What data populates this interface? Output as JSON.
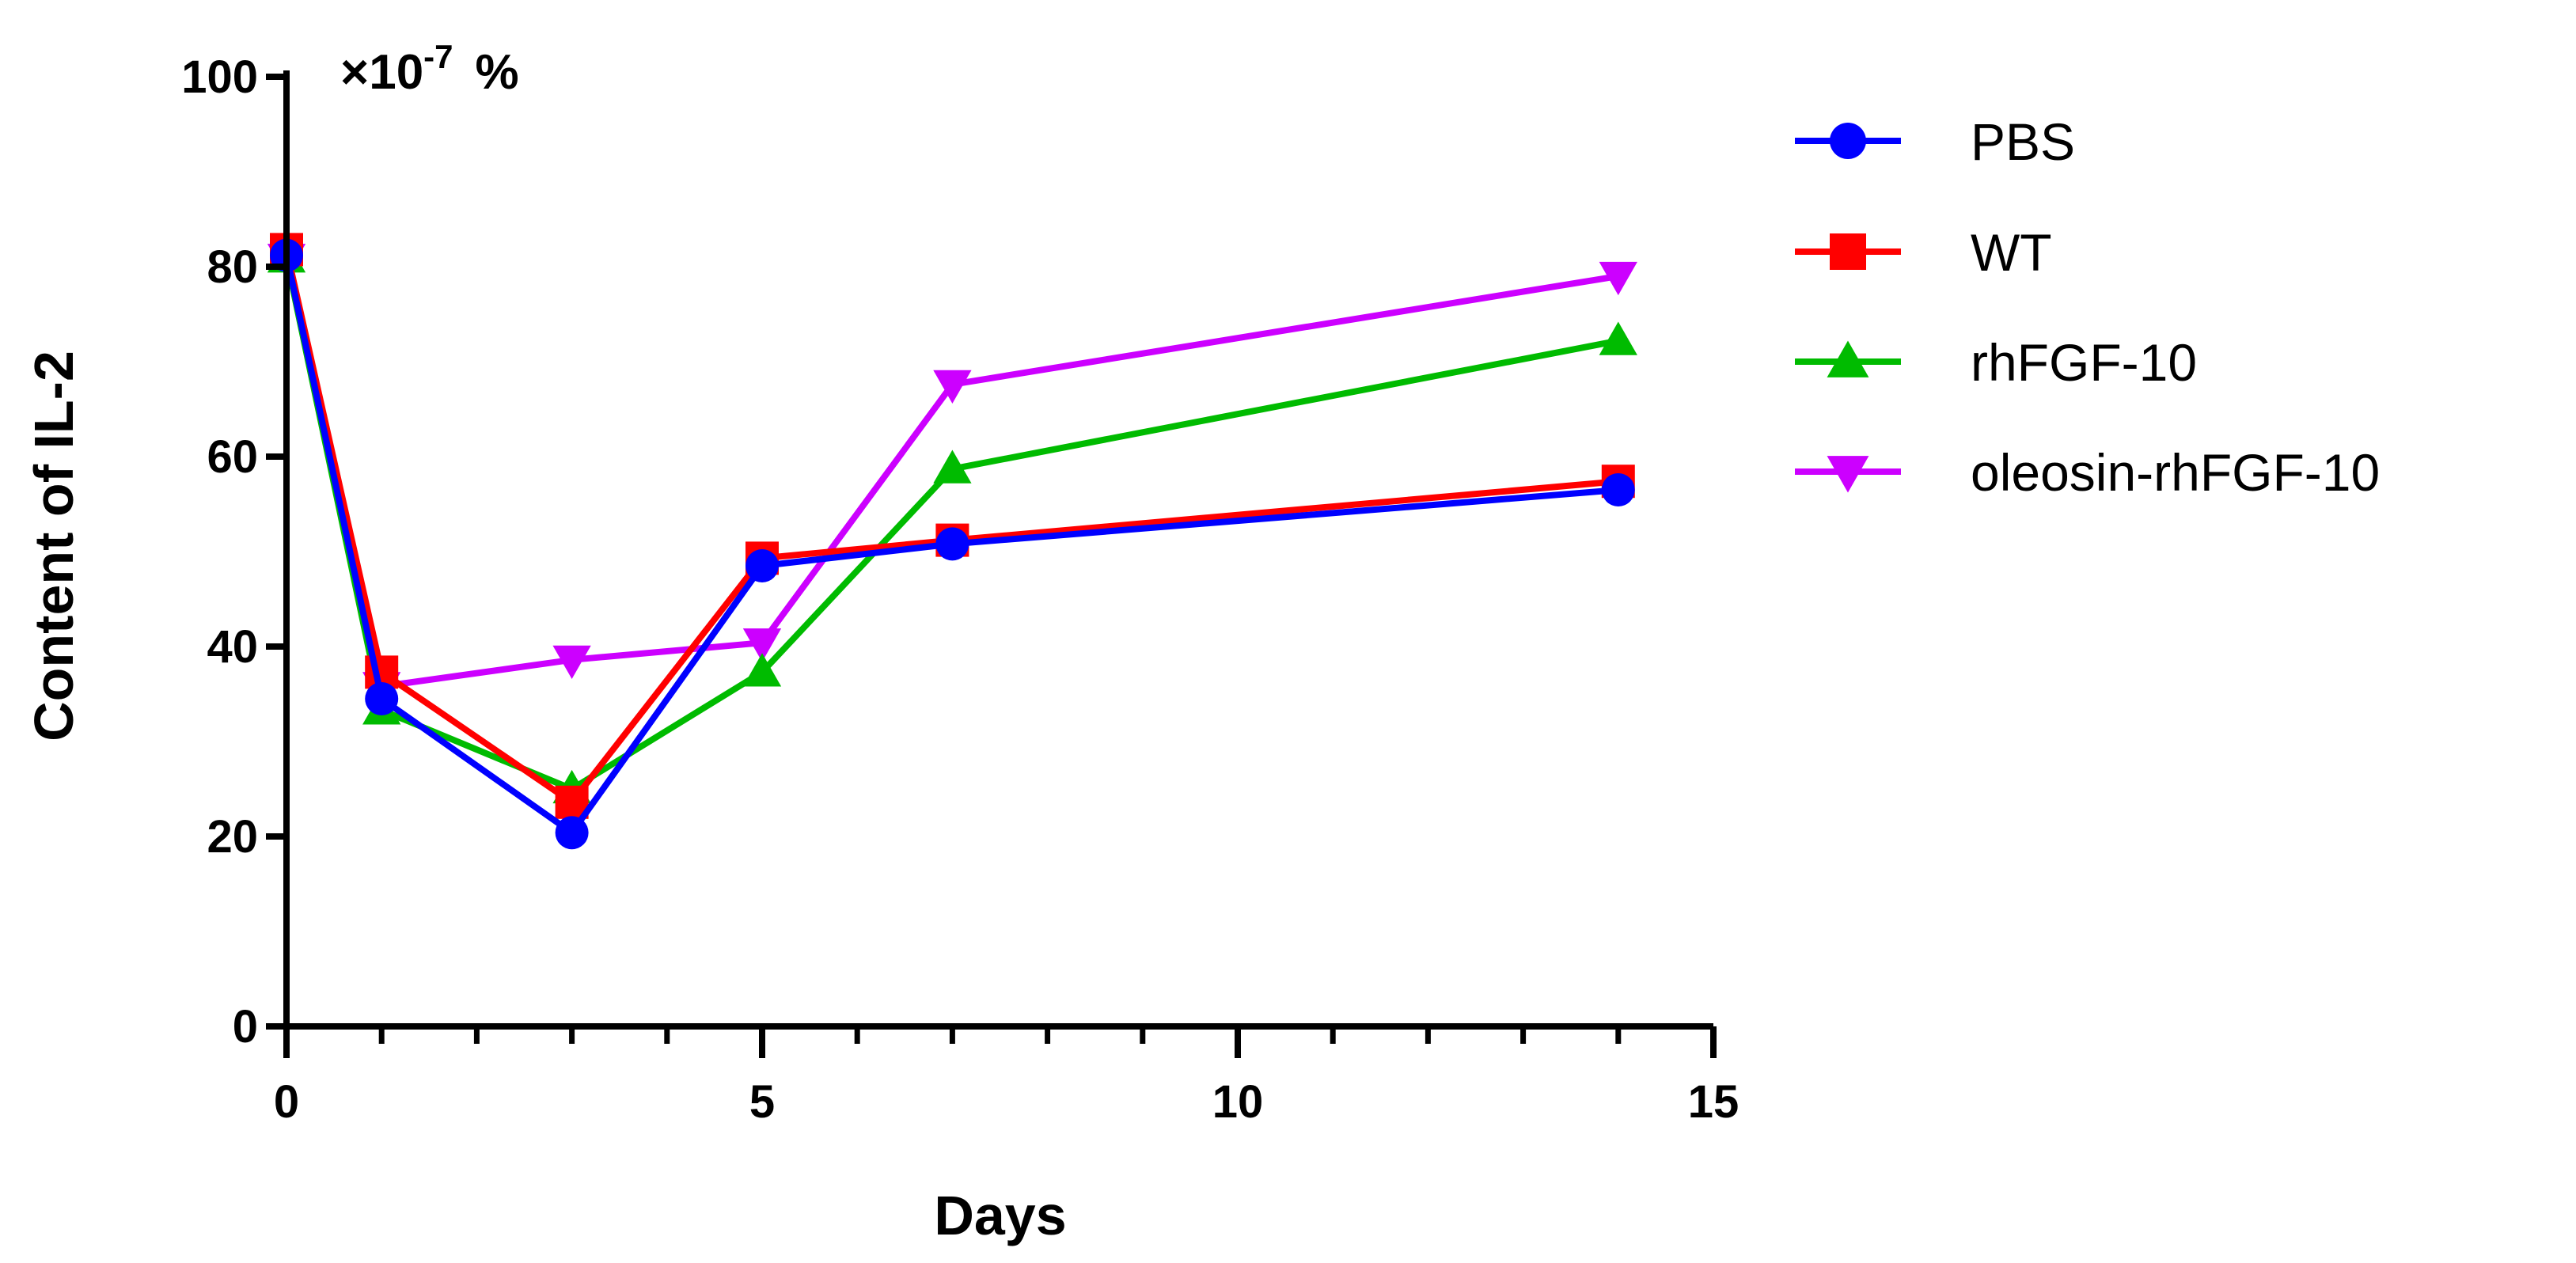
{
  "chart_data": {
    "type": "line",
    "title": "",
    "xlabel": "Days",
    "ylabel": "Content of IL-2",
    "unit": {
      "base": "×10",
      "exponent": "-7",
      "suffix": "%"
    },
    "xlim": [
      0,
      15
    ],
    "ylim": [
      0,
      100
    ],
    "x_major_ticks": [
      0,
      5,
      10,
      15
    ],
    "x_minor_ticks": [
      1,
      2,
      3,
      4,
      6,
      7,
      8,
      9,
      11,
      12,
      13,
      14
    ],
    "y_ticks": [
      0,
      20,
      40,
      60,
      80,
      100
    ],
    "x": [
      0,
      1,
      3,
      5,
      7,
      14
    ],
    "legend_position": "right",
    "grid": false,
    "series": [
      {
        "name": "PBS",
        "color": "#0000ff",
        "marker": "circle",
        "values": [
          81.2,
          34.5,
          20.4,
          48.5,
          50.8,
          56.5
        ]
      },
      {
        "name": "WT",
        "color": "#ff0000",
        "marker": "square",
        "values": [
          81.8,
          37.3,
          23.6,
          49.3,
          51.2,
          57.4
        ]
      },
      {
        "name": "rhFGF-10",
        "color": "#00bb00",
        "marker": "triangle-up",
        "values": [
          80.9,
          33.3,
          25.0,
          37.3,
          58.7,
          72.2
        ]
      },
      {
        "name": "oleosin-rhFGF-10",
        "color": "#cc00ff",
        "marker": "triangle-down",
        "values": [
          80.9,
          35.8,
          38.6,
          40.4,
          67.6,
          79.0
        ]
      }
    ]
  }
}
